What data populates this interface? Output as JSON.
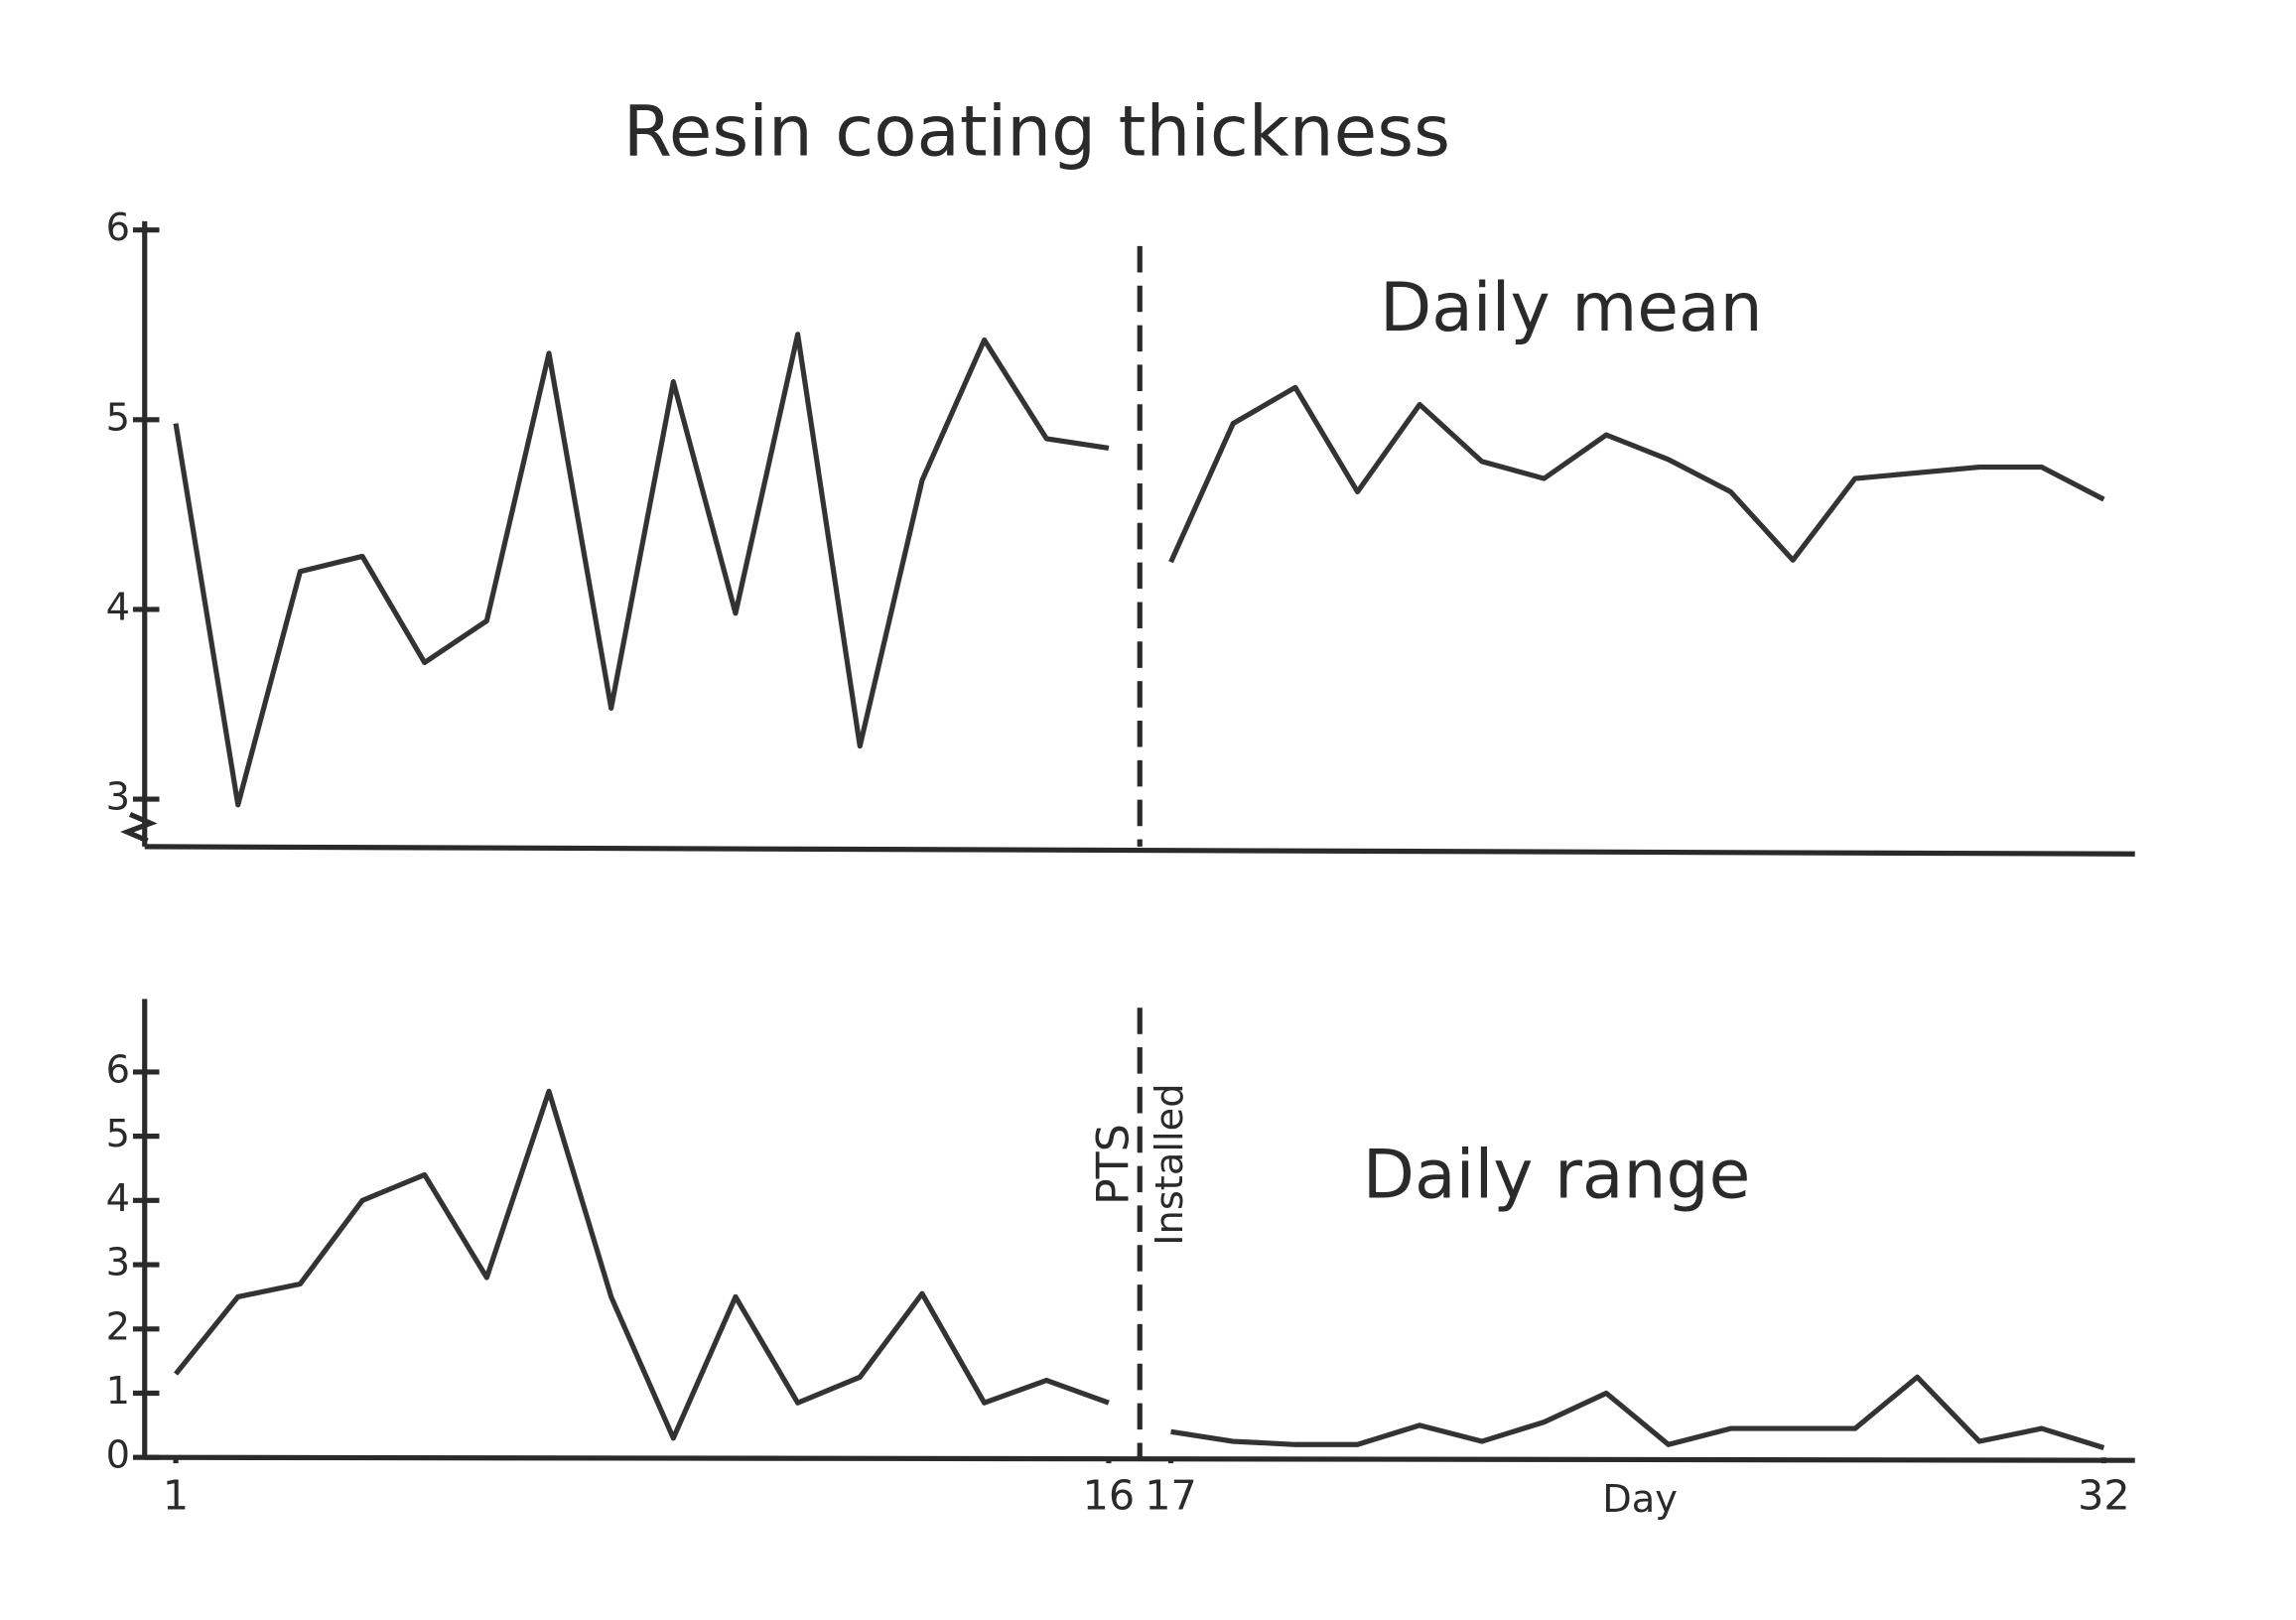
{
  "chart_data": [
    {
      "type": "line",
      "title": "Resin coating thickness",
      "annotation": "Daily mean",
      "x": [
        1,
        2,
        3,
        4,
        5,
        6,
        7,
        8,
        9,
        10,
        11,
        12,
        13,
        14,
        15,
        16,
        17,
        18,
        19,
        20,
        21,
        22,
        23,
        24,
        25,
        26,
        27,
        28,
        29,
        30,
        31,
        32
      ],
      "values": [
        4.98,
        2.97,
        4.2,
        4.28,
        3.72,
        3.94,
        5.35,
        3.48,
        5.2,
        3.98,
        5.45,
        3.28,
        4.68,
        5.42,
        4.9,
        4.85,
        4.25,
        4.98,
        5.17,
        4.62,
        5.08,
        4.78,
        4.69,
        4.92,
        4.79,
        4.62,
        4.26,
        4.69,
        4.72,
        4.75,
        4.75,
        4.58
      ],
      "color": "#333333",
      "xlim": [
        0.5,
        32.5
      ],
      "ylim": [
        2.75,
        6
      ],
      "yticks": [
        3,
        4,
        5,
        6
      ],
      "vline": 16.5,
      "axis_break": true
    },
    {
      "type": "line",
      "annotation": "Daily range",
      "xlabel": "Day",
      "x": [
        1,
        2,
        3,
        4,
        5,
        6,
        7,
        8,
        9,
        10,
        11,
        12,
        13,
        14,
        15,
        16,
        17,
        18,
        19,
        20,
        21,
        22,
        23,
        24,
        25,
        26,
        27,
        28,
        29,
        30,
        31,
        32
      ],
      "values": [
        1.3,
        2.5,
        2.7,
        4.0,
        4.4,
        2.8,
        5.7,
        2.5,
        0.3,
        2.5,
        0.85,
        1.25,
        2.55,
        0.85,
        1.2,
        0.85,
        0.4,
        0.25,
        0.2,
        0.2,
        0.5,
        0.25,
        0.55,
        1.0,
        0.2,
        0.45,
        0.45,
        0.45,
        1.25,
        0.25,
        0.45,
        0.15
      ],
      "color": "#333333",
      "xlim": [
        0.5,
        32.5
      ],
      "ylim": [
        0,
        7
      ],
      "yticks": [
        0,
        1,
        2,
        3,
        4,
        5,
        6
      ],
      "xticks": [
        1,
        16,
        17,
        32
      ],
      "vline": 16.5,
      "vline_labels": [
        "PTS",
        "Installed"
      ]
    }
  ]
}
